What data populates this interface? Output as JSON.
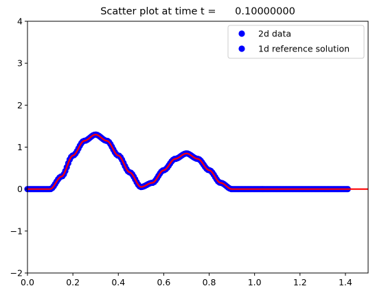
{
  "chart_data": {
    "type": "scatter",
    "title": "Scatter plot at time t =      0.10000000",
    "xlabel": "",
    "ylabel": "",
    "xlim": [
      0,
      1.5
    ],
    "ylim": [
      -2,
      4
    ],
    "xticks": [
      "0.0",
      "0.2",
      "0.4",
      "0.6",
      "0.8",
      "1.0",
      "1.2",
      "1.4"
    ],
    "yticks": [
      "−2",
      "−1",
      "0",
      "1",
      "2",
      "3",
      "4"
    ],
    "grid": false,
    "legend_position": "top-right",
    "legend": [
      {
        "label": "2d data",
        "color": "#0000ff",
        "marker": "circle"
      },
      {
        "label": "1d reference solution",
        "color": "#0000ff",
        "marker": "circle"
      }
    ],
    "series": [
      {
        "label_ref": 0,
        "style": "markers",
        "color": "#0000ff",
        "x_range": [
          0.0,
          1.41
        ],
        "curve_points": [
          [
            0.0,
            0.0
          ],
          [
            0.1,
            0.0
          ],
          [
            0.15,
            0.3
          ],
          [
            0.2,
            0.8
          ],
          [
            0.25,
            1.15
          ],
          [
            0.3,
            1.3
          ],
          [
            0.35,
            1.15
          ],
          [
            0.4,
            0.8
          ],
          [
            0.45,
            0.4
          ],
          [
            0.5,
            0.05
          ],
          [
            0.55,
            0.15
          ],
          [
            0.6,
            0.45
          ],
          [
            0.65,
            0.72
          ],
          [
            0.7,
            0.85
          ],
          [
            0.75,
            0.72
          ],
          [
            0.8,
            0.45
          ],
          [
            0.85,
            0.15
          ],
          [
            0.9,
            0.0
          ],
          [
            1.41,
            0.0
          ]
        ]
      },
      {
        "label_ref": 1,
        "style": "line",
        "color": "#ff0000",
        "x_range": [
          0.0,
          1.5
        ],
        "curve_points": [
          [
            0.0,
            0.0
          ],
          [
            0.1,
            0.0
          ],
          [
            0.15,
            0.3
          ],
          [
            0.2,
            0.8
          ],
          [
            0.25,
            1.15
          ],
          [
            0.3,
            1.3
          ],
          [
            0.35,
            1.15
          ],
          [
            0.4,
            0.8
          ],
          [
            0.45,
            0.4
          ],
          [
            0.5,
            0.05
          ],
          [
            0.55,
            0.15
          ],
          [
            0.6,
            0.45
          ],
          [
            0.65,
            0.72
          ],
          [
            0.7,
            0.85
          ],
          [
            0.75,
            0.72
          ],
          [
            0.8,
            0.45
          ],
          [
            0.85,
            0.15
          ],
          [
            0.9,
            0.0
          ],
          [
            1.5,
            0.0
          ]
        ]
      }
    ]
  }
}
